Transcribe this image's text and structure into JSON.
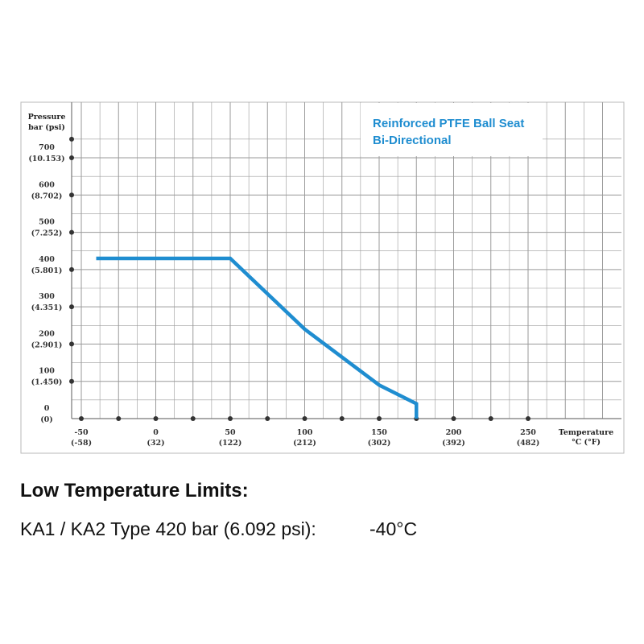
{
  "chart_data": {
    "type": "line",
    "title_lines": [
      "Reinforced PTFE Ball Seat",
      "Bi-Directional"
    ],
    "ylabel_lines": [
      "Pressure",
      "bar (psi)"
    ],
    "xlabel_lines": [
      "Temperature",
      "°C (°F)"
    ],
    "xlim": [
      -50,
      250
    ],
    "ylim": [
      0,
      700
    ],
    "x_ticks": [
      {
        "value": -50,
        "label": "-50",
        "sub": "(-58)"
      },
      {
        "value": 0,
        "label": "0",
        "sub": "(32)"
      },
      {
        "value": 50,
        "label": "50",
        "sub": "(122)"
      },
      {
        "value": 100,
        "label": "100",
        "sub": "(212)"
      },
      {
        "value": 150,
        "label": "150",
        "sub": "(302)"
      },
      {
        "value": 200,
        "label": "200",
        "sub": "(392)"
      },
      {
        "value": 250,
        "label": "250",
        "sub": "(482)"
      }
    ],
    "y_ticks": [
      {
        "value": 0,
        "label": "0",
        "sub": "(0)"
      },
      {
        "value": 100,
        "label": "100",
        "sub": "(1.450)"
      },
      {
        "value": 200,
        "label": "200",
        "sub": "(2.901)"
      },
      {
        "value": 300,
        "label": "300",
        "sub": "(4.351)"
      },
      {
        "value": 400,
        "label": "400",
        "sub": "(5.801)"
      },
      {
        "value": 500,
        "label": "500",
        "sub": "(7.252)"
      },
      {
        "value": 600,
        "label": "600",
        "sub": "(8.702)"
      },
      {
        "value": 700,
        "label": "700",
        "sub": "(10.153)"
      }
    ],
    "series": [
      {
        "x": [
          -40,
          50,
          100,
          150,
          175,
          175
        ],
        "y": [
          430,
          430,
          240,
          90,
          40,
          0
        ]
      }
    ],
    "grid": true,
    "colors": {
      "line": "#1f8dd0",
      "title": "#1f8dd0",
      "grid": "#9a9a9a",
      "frame": "#b8b8b8",
      "dot": "#333333"
    }
  },
  "text": {
    "heading": "Low Temperature Limits:",
    "limit_label": "KA1 / KA2 Type 420 bar (6.092 psi):",
    "limit_value": "-40°C"
  }
}
